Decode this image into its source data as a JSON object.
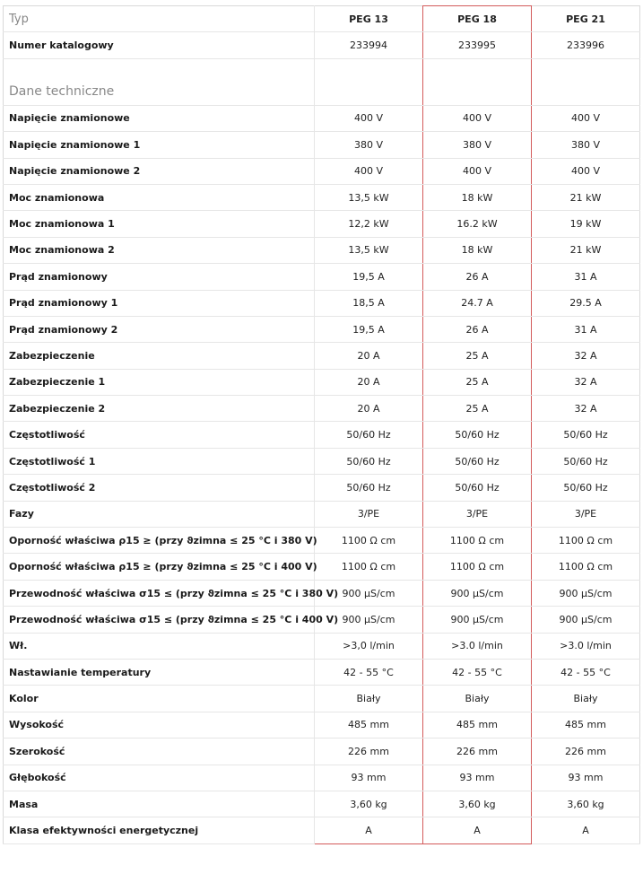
{
  "header": {
    "label": "Typ",
    "models": [
      "PEG 13",
      "PEG 18",
      "PEG 21"
    ]
  },
  "catalog": {
    "label": "Numer katalogowy",
    "values": [
      "233994",
      "233995",
      "233996"
    ]
  },
  "section_title": "Dane techniczne",
  "rows": [
    {
      "label": "Napięcie znamionowe",
      "values": [
        "400 V",
        "400 V",
        "400 V"
      ]
    },
    {
      "label": "Napięcie znamionowe 1",
      "values": [
        "380 V",
        "380 V",
        "380 V"
      ]
    },
    {
      "label": "Napięcie znamionowe 2",
      "values": [
        "400 V",
        "400 V",
        "400 V"
      ]
    },
    {
      "label": "Moc znamionowa",
      "values": [
        "13,5 kW",
        "18 kW",
        "21 kW"
      ]
    },
    {
      "label": "Moc znamionowa 1",
      "values": [
        "12,2 kW",
        "16.2 kW",
        "19 kW"
      ]
    },
    {
      "label": "Moc znamionowa 2",
      "values": [
        "13,5 kW",
        "18 kW",
        "21 kW"
      ]
    },
    {
      "label": "Prąd znamionowy",
      "values": [
        "19,5 A",
        "26 A",
        "31 A"
      ]
    },
    {
      "label": "Prąd znamionowy 1",
      "values": [
        "18,5 A",
        "24.7 A",
        "29.5 A"
      ]
    },
    {
      "label": "Prąd znamionowy 2",
      "values": [
        "19,5 A",
        "26 A",
        "31 A"
      ]
    },
    {
      "label": "Zabezpieczenie",
      "values": [
        "20 A",
        "25 A",
        "32 A"
      ]
    },
    {
      "label": "Zabezpieczenie 1",
      "values": [
        "20 A",
        "25 A",
        "32 A"
      ]
    },
    {
      "label": "Zabezpieczenie 2",
      "values": [
        "20 A",
        "25 A",
        "32 A"
      ]
    },
    {
      "label": "Częstotliwość",
      "values": [
        "50/60 Hz",
        "50/60 Hz",
        "50/60 Hz"
      ]
    },
    {
      "label": "Częstotliwość 1",
      "values": [
        "50/60 Hz",
        "50/60 Hz",
        "50/60 Hz"
      ]
    },
    {
      "label": "Częstotliwość 2",
      "values": [
        "50/60 Hz",
        "50/60 Hz",
        "50/60 Hz"
      ]
    },
    {
      "label": "Fazy",
      "values": [
        "3/PE",
        "3/PE",
        "3/PE"
      ]
    },
    {
      "label": "Oporność właściwa ρ15 ≥ (przy ϑzimna ≤ 25 °C i 380 V)",
      "values": [
        "1100 Ω cm",
        "1100 Ω cm",
        "1100 Ω cm"
      ]
    },
    {
      "label": "Oporność właściwa ρ15 ≥ (przy ϑzimna ≤ 25 °C i 400 V)",
      "values": [
        "1100 Ω cm",
        "1100 Ω cm",
        "1100 Ω cm"
      ]
    },
    {
      "label": "Przewodność właściwa σ15 ≤ (przy ϑzimna ≤ 25 °C i 380 V)",
      "values": [
        "900 μS/cm",
        "900 μS/cm",
        "900 μS/cm"
      ]
    },
    {
      "label": "Przewodność właściwa σ15 ≤ (przy ϑzimna ≤ 25 °C i 400 V)",
      "values": [
        "900 μS/cm",
        "900 μS/cm",
        "900 μS/cm"
      ]
    },
    {
      "label": "Wł.",
      "values": [
        ">3,0 l/min",
        ">3.0 l/min",
        ">3.0 l/min"
      ]
    },
    {
      "label": "Nastawianie temperatury",
      "values": [
        "42 - 55 °C",
        "42 - 55 °C",
        "42 - 55 °C"
      ]
    },
    {
      "label": "Kolor",
      "values": [
        "Biały",
        "Biały",
        "Biały"
      ]
    },
    {
      "label": "Wysokość",
      "values": [
        "485 mm",
        "485 mm",
        "485 mm"
      ]
    },
    {
      "label": "Szerokość",
      "values": [
        "226 mm",
        "226 mm",
        "226 mm"
      ]
    },
    {
      "label": "Głębokość",
      "values": [
        "93 mm",
        "93 mm",
        "93 mm"
      ]
    },
    {
      "label": "Masa",
      "values": [
        "3,60 kg",
        "3,60 kg",
        "3,60 kg"
      ]
    },
    {
      "label": "Klasa efektywności energetycznej",
      "values": [
        "A",
        "A",
        "A"
      ]
    }
  ],
  "colors": {
    "highlight_border": "#d35b5b",
    "grid": "#e6e6e6",
    "muted_text": "#888888"
  }
}
